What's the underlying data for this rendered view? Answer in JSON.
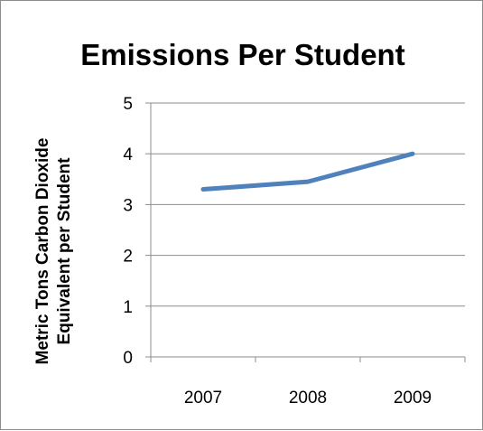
{
  "chart_data": {
    "type": "line",
    "title": "Emissions Per Student",
    "ylabel_lines": [
      "Metric Tons Carbon Dioxide",
      "Equivalent per Student"
    ],
    "xlabel": "",
    "categories": [
      "2007",
      "2008",
      "2009"
    ],
    "series": [
      {
        "values": [
          3.3,
          3.45,
          4.0
        ],
        "color": "#4f81bd"
      }
    ],
    "ylim": [
      0,
      5
    ],
    "yticks": [
      0,
      1,
      2,
      3,
      4,
      5
    ],
    "grid": true,
    "legend": "none"
  }
}
